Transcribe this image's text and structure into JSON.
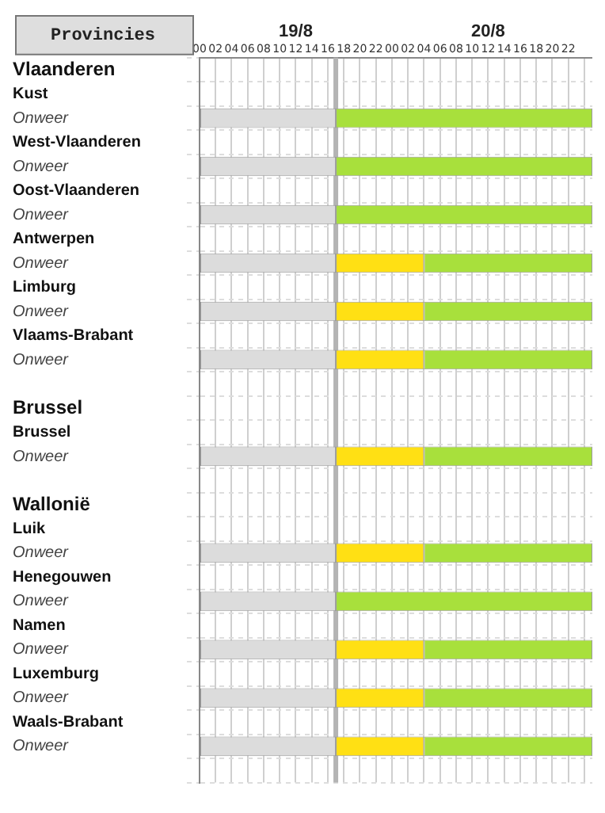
{
  "chart_data": {
    "type": "bar",
    "orientation": "horizontal",
    "ylabel": "Provincies",
    "categories": [
      "Vlaanderen",
      "Kust",
      "Onweer",
      "West-Vlaanderen",
      "Onweer",
      "Oost-Vlaanderen",
      "Onweer",
      "Antwerpen",
      "Onweer",
      "Limburg",
      "Onweer",
      "Vlaams-Brabant",
      "Onweer",
      null,
      "Brussel",
      "Brussel",
      "Onweer",
      null,
      "Wallonië",
      "Luik",
      "Onweer",
      "Henegouwen",
      "Onweer",
      "Namen",
      "Onweer",
      "Luxemburg",
      "Onweer",
      "Waals-Brabant",
      "Onweer",
      null
    ],
    "series": [
      {
        "color": "#dcdcdc",
        "base": [
          null,
          null,
          0,
          null,
          0,
          null,
          0,
          null,
          0,
          null,
          0,
          null,
          0,
          null,
          null,
          null,
          0,
          null,
          null,
          null,
          0,
          null,
          0,
          null,
          0,
          null,
          0,
          null,
          0,
          null
        ],
        "values": [
          null,
          null,
          17,
          null,
          17,
          null,
          17,
          null,
          17,
          null,
          17,
          null,
          17,
          null,
          null,
          null,
          17,
          null,
          null,
          null,
          17,
          null,
          17,
          null,
          17,
          null,
          17,
          null,
          17,
          null
        ]
      },
      {
        "color": "#ffe014",
        "base": [
          null,
          null,
          null,
          null,
          null,
          null,
          null,
          null,
          17,
          null,
          17,
          null,
          17,
          null,
          null,
          null,
          17,
          null,
          null,
          null,
          17,
          null,
          null,
          null,
          17,
          null,
          17,
          null,
          17,
          null
        ],
        "values": [
          null,
          null,
          null,
          null,
          null,
          null,
          null,
          null,
          11,
          null,
          11,
          null,
          11,
          null,
          null,
          null,
          11,
          null,
          null,
          null,
          11,
          null,
          null,
          null,
          11,
          null,
          11,
          null,
          11,
          null
        ]
      },
      {
        "color": "#a8e03c",
        "base": [
          null,
          null,
          17,
          null,
          17,
          null,
          17,
          null,
          28,
          null,
          28,
          null,
          28,
          null,
          null,
          null,
          28,
          null,
          null,
          null,
          28,
          null,
          17,
          null,
          28,
          null,
          28,
          null,
          28,
          null
        ],
        "values": [
          null,
          null,
          32,
          null,
          32,
          null,
          32,
          null,
          21,
          null,
          21,
          null,
          21,
          null,
          null,
          null,
          21,
          null,
          null,
          null,
          21,
          null,
          32,
          null,
          21,
          null,
          21,
          null,
          21,
          null
        ]
      }
    ],
    "xlim": [
      0,
      49
    ],
    "xticks": [
      {
        "value": 0,
        "label": "00"
      },
      {
        "value": 2,
        "label": "02"
      },
      {
        "value": 4,
        "label": "04"
      },
      {
        "value": 6,
        "label": "06"
      },
      {
        "value": 8,
        "label": "08"
      },
      {
        "value": 10,
        "label": "10"
      },
      {
        "value": 12,
        "label": "12"
      },
      {
        "value": 14,
        "label": "14"
      },
      {
        "value": 16,
        "label": "16"
      },
      {
        "value": 18,
        "label": "18"
      },
      {
        "value": 20,
        "label": "20"
      },
      {
        "value": 22,
        "label": "22"
      },
      {
        "value": 24,
        "label": "00"
      },
      {
        "value": 26,
        "label": "02"
      },
      {
        "value": 28,
        "label": "04"
      },
      {
        "value": 30,
        "label": "06"
      },
      {
        "value": 32,
        "label": "08"
      },
      {
        "value": 34,
        "label": "10"
      },
      {
        "value": 36,
        "label": "12"
      },
      {
        "value": 38,
        "label": "14"
      },
      {
        "value": 40,
        "label": "16"
      },
      {
        "value": 42,
        "label": "18"
      },
      {
        "value": 44,
        "label": "20"
      },
      {
        "value": 46,
        "label": "22"
      },
      {
        "value": 48,
        "label": null
      }
    ],
    "annotations": [
      "19/8",
      "20/8"
    ],
    "ref_lines": [
      {
        "axis": "x",
        "value": 17,
        "color": "#b4b4b4"
      }
    ],
    "grid": true
  }
}
